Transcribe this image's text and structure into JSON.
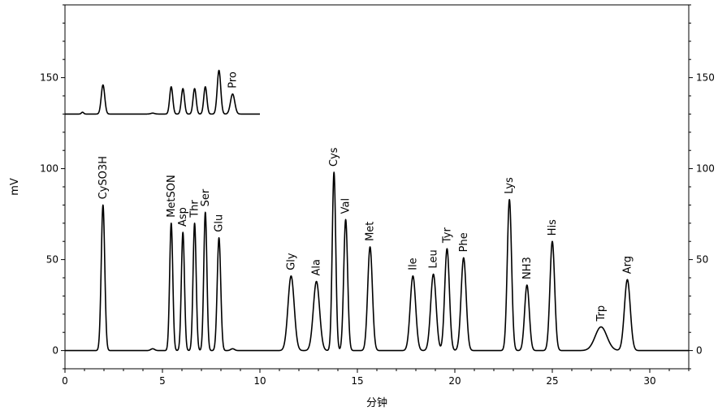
{
  "chart_data": {
    "type": "line",
    "title": "",
    "xlabel": "分钟",
    "ylabel": "mV",
    "xlim": [
      0,
      32
    ],
    "ylim": [
      -10,
      190
    ],
    "x_ticks": [
      0,
      5,
      10,
      15,
      20,
      25,
      30
    ],
    "y_ticks": [
      0,
      50,
      100,
      150
    ],
    "grid": false,
    "right_axis": true,
    "series": [
      {
        "baseline": 0,
        "x_range": [
          0,
          32
        ],
        "peaks": [
          {
            "label": "CySO3H",
            "x": 1.95,
            "height": 80,
            "width": 0.09
          },
          {
            "label": "",
            "x": 4.5,
            "height": 1,
            "width": 0.1
          },
          {
            "label": "MetSON",
            "x": 5.45,
            "height": 70,
            "width": 0.08
          },
          {
            "label": "Asp",
            "x": 6.05,
            "height": 65,
            "width": 0.08
          },
          {
            "label": "Thr",
            "x": 6.65,
            "height": 70,
            "width": 0.08
          },
          {
            "label": "Ser",
            "x": 7.2,
            "height": 76,
            "width": 0.08
          },
          {
            "label": "Glu",
            "x": 7.9,
            "height": 62,
            "width": 0.09
          },
          {
            "label": "",
            "x": 8.6,
            "height": 1,
            "width": 0.1
          },
          {
            "label": "Gly",
            "x": 11.6,
            "height": 41,
            "width": 0.16
          },
          {
            "label": "Ala",
            "x": 12.9,
            "height": 38,
            "width": 0.16
          },
          {
            "label": "Cys",
            "x": 13.8,
            "height": 98,
            "width": 0.09
          },
          {
            "label": "Val",
            "x": 14.4,
            "height": 72,
            "width": 0.1
          },
          {
            "label": "Met",
            "x": 15.65,
            "height": 57,
            "width": 0.12
          },
          {
            "label": "Ile",
            "x": 17.85,
            "height": 41,
            "width": 0.14
          },
          {
            "label": "Leu",
            "x": 18.9,
            "height": 42,
            "width": 0.14
          },
          {
            "label": "Tyr",
            "x": 19.6,
            "height": 56,
            "width": 0.12
          },
          {
            "label": "Phe",
            "x": 20.45,
            "height": 51,
            "width": 0.13
          },
          {
            "label": "Lys",
            "x": 22.8,
            "height": 83,
            "width": 0.11
          },
          {
            "label": "NH3",
            "x": 23.7,
            "height": 36,
            "width": 0.12
          },
          {
            "label": "His",
            "x": 25.0,
            "height": 60,
            "width": 0.12
          },
          {
            "label": "Trp",
            "x": 27.5,
            "height": 13,
            "width": 0.3
          },
          {
            "label": "Arg",
            "x": 28.85,
            "height": 39,
            "width": 0.15
          }
        ]
      },
      {
        "baseline": 130,
        "x_range": [
          0,
          10
        ],
        "peaks": [
          {
            "label": "",
            "x": 0.9,
            "height": 1,
            "width": 0.06
          },
          {
            "label": "",
            "x": 1.95,
            "height": 16,
            "width": 0.09
          },
          {
            "label": "",
            "x": 4.5,
            "height": 0.5,
            "width": 0.1
          },
          {
            "label": "",
            "x": 5.45,
            "height": 15,
            "width": 0.08
          },
          {
            "label": "",
            "x": 6.05,
            "height": 14,
            "width": 0.08
          },
          {
            "label": "",
            "x": 6.65,
            "height": 14,
            "width": 0.08
          },
          {
            "label": "",
            "x": 7.2,
            "height": 15,
            "width": 0.08
          },
          {
            "label": "",
            "x": 7.9,
            "height": 24,
            "width": 0.09
          },
          {
            "label": "Pro",
            "x": 8.6,
            "height": 11,
            "width": 0.11
          }
        ]
      }
    ]
  }
}
